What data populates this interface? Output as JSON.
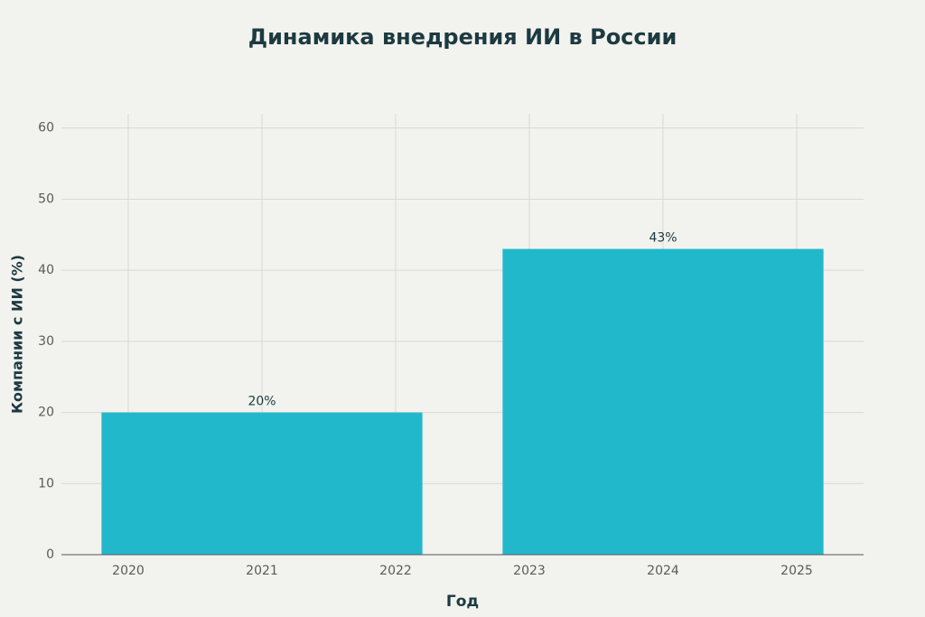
{
  "chart_data": {
    "type": "bar",
    "title": "Динамика внедрения ИИ в России",
    "x_label": "Год",
    "y_label": "Компании с ИИ (%)",
    "x": [
      2021,
      2024
    ],
    "values": [
      20,
      43
    ],
    "value_labels": [
      "20%",
      "43%"
    ],
    "color": "#22b8cc",
    "xlim": [
      2019.5,
      2025.5
    ],
    "xticks": [
      2020,
      2021,
      2022,
      2023,
      2024,
      2025
    ],
    "ylim": [
      0,
      62
    ],
    "yticks": [
      0,
      10,
      20,
      30,
      40,
      50,
      60
    ],
    "grid": true
  }
}
